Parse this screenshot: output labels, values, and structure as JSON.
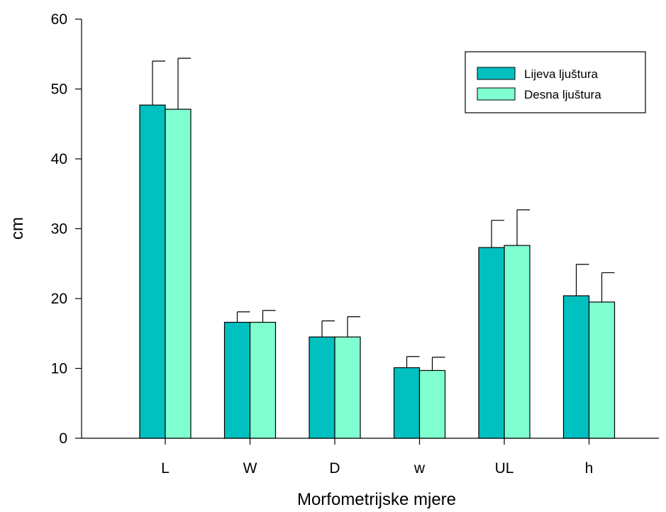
{
  "chart_data": {
    "type": "bar",
    "title": "",
    "xlabel": "Morfometrijske mjere",
    "ylabel": "cm",
    "categories": [
      "L",
      "W",
      "D",
      "w",
      "UL",
      "h"
    ],
    "series": [
      {
        "name": "Lijeva ljuštura",
        "color": "#00c0c0",
        "values": [
          47.7,
          16.6,
          14.5,
          10.1,
          27.3,
          20.4
        ],
        "errors": [
          6.3,
          1.5,
          2.3,
          1.6,
          3.9,
          4.5
        ]
      },
      {
        "name": "Desna ljuštura",
        "color": "#80ffd0",
        "values": [
          47.1,
          16.6,
          14.5,
          9.7,
          27.6,
          19.5
        ],
        "errors": [
          7.3,
          1.7,
          2.9,
          1.9,
          5.1,
          4.2
        ]
      }
    ],
    "ylim": [
      0,
      60
    ],
    "yticks": [
      "0",
      "10",
      "20",
      "30",
      "40",
      "50",
      "60"
    ],
    "legend_position": "top-right",
    "grid": false
  }
}
